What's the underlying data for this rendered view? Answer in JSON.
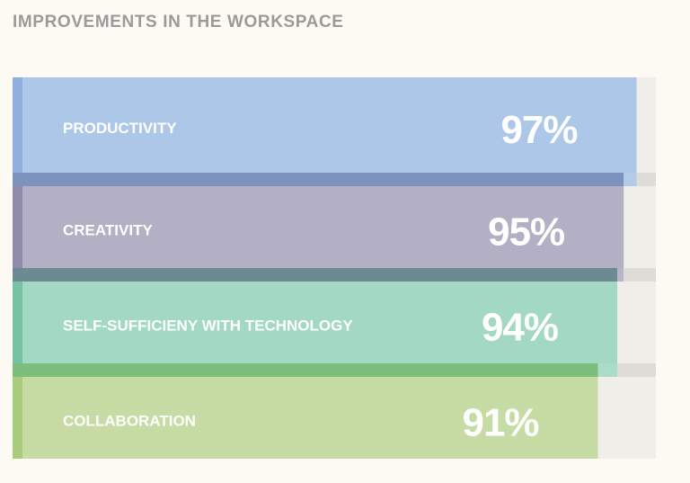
{
  "chart_data": {
    "type": "bar",
    "orientation": "horizontal",
    "title": "IMPROVEMENTS IN THE WORKSPACE",
    "xlim": [
      0,
      100
    ],
    "grid": false,
    "legend": "none",
    "categories": [
      "PRODUCTIVITY",
      "CREATIVITY",
      "SELF-SUFFICIENY WITH TECHNOLOGY",
      "COLLABORATION"
    ],
    "values": [
      97,
      95,
      94,
      91
    ],
    "value_labels": [
      "97%",
      "95%",
      "94%",
      "91%"
    ],
    "colors": [
      "#adc7e8",
      "#b3afc4",
      "#a3d9c3",
      "#c6dca4"
    ],
    "accent_colors": [
      "#8fb0de",
      "#8f8bab",
      "#74c3a2",
      "#a8cd7c"
    ],
    "band_colors": [
      "#7d92bd",
      "#6c8a92",
      "#7dbd7d",
      "#e1e1dd"
    ],
    "track_color": "#efeee8"
  }
}
